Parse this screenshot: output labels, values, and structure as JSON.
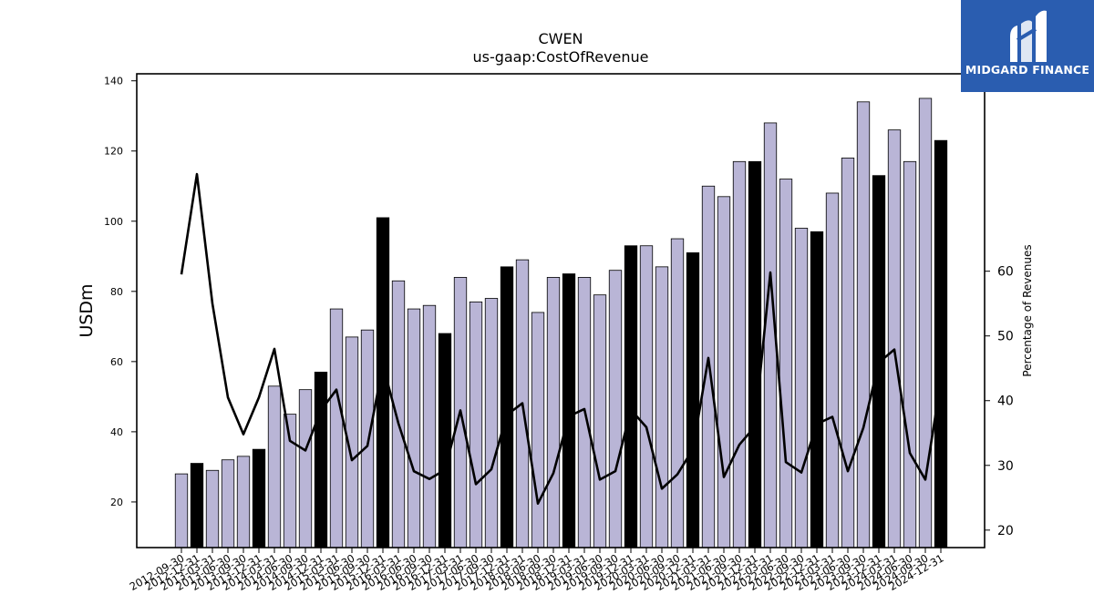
{
  "brand": {
    "name": "MIDGARD FINANCE",
    "logo_color": "#2a5db0"
  },
  "chart_data": {
    "type": "bar",
    "title": "CWEN",
    "subtitle": "us-gaap:CostOfRevenue",
    "ylabel": "USDm",
    "y2label": "Percentage of Revenues",
    "ylim": [
      7,
      142
    ],
    "y2lim": [
      17.3,
      90.5
    ],
    "yticks": [
      20,
      40,
      60,
      80,
      100,
      120,
      140
    ],
    "y2ticks": [
      20,
      30,
      40,
      50,
      60
    ],
    "categories": [
      "2012-09-30",
      "2012-12-31",
      "2013-03-31",
      "2013-06-30",
      "2013-09-30",
      "2013-12-31",
      "2014-03-31",
      "2014-06-30",
      "2014-09-30",
      "2014-12-31",
      "2015-03-31",
      "2015-06-30",
      "2015-09-30",
      "2015-12-31",
      "2016-03-31",
      "2016-06-30",
      "2016-09-30",
      "2016-12-31",
      "2017-03-31",
      "2017-06-30",
      "2017-09-30",
      "2017-12-31",
      "2018-03-31",
      "2018-06-30",
      "2018-09-30",
      "2018-12-31",
      "2019-03-31",
      "2019-06-30",
      "2019-09-30",
      "2019-12-31",
      "2020-03-31",
      "2020-06-30",
      "2020-09-30",
      "2020-12-31",
      "2021-03-31",
      "2021-06-30",
      "2021-09-30",
      "2021-12-31",
      "2022-03-31",
      "2022-06-30",
      "2022-09-30",
      "2022-12-31",
      "2023-03-31",
      "2023-06-30",
      "2023-09-30",
      "2023-12-31",
      "2024-03-31",
      "2024-06-30",
      "2024-09-30",
      "2024-12-31"
    ],
    "series": [
      {
        "kind": "bar",
        "values": [
          28,
          31,
          29,
          32,
          33,
          35,
          53,
          45,
          52,
          57,
          75,
          67,
          69,
          101,
          83,
          75,
          76,
          68,
          84,
          77,
          78,
          87,
          89,
          74,
          84,
          85,
          84,
          79,
          86,
          93,
          93,
          87,
          95,
          91,
          110,
          107,
          117,
          117,
          128,
          112,
          98,
          97,
          108,
          118,
          134,
          113,
          126,
          117,
          135,
          123
        ],
        "highlight": [
          false,
          true,
          false,
          false,
          false,
          true,
          false,
          false,
          false,
          true,
          false,
          false,
          false,
          true,
          false,
          false,
          false,
          true,
          false,
          false,
          false,
          true,
          false,
          false,
          false,
          true,
          false,
          false,
          false,
          true,
          false,
          false,
          false,
          true,
          false,
          false,
          false,
          true,
          false,
          false,
          false,
          true,
          false,
          false,
          false,
          true,
          false,
          false,
          false,
          true
        ]
      },
      {
        "kind": "line",
        "axis": "right",
        "values": [
          59.5,
          75,
          55,
          40.5,
          34.8,
          40.5,
          48,
          33.8,
          32.3,
          38.5,
          41.7,
          30.8,
          33,
          45.5,
          36.5,
          29.1,
          27.9,
          29.3,
          38.5,
          27.1,
          29.4,
          37.8,
          39.6,
          24.1,
          28.8,
          37.6,
          38.7,
          27.8,
          29.1,
          38.6,
          35.9,
          26.4,
          28.6,
          32.5,
          46.6,
          28.2,
          33.2,
          36,
          59.8,
          30.5,
          28.9,
          36.4,
          37.5,
          29.1,
          35.8,
          45.9,
          47.9,
          31.9,
          27.8,
          43
        ]
      }
    ],
    "colors": {
      "bar": "#b9b5d6",
      "bar_highlight": "#000000",
      "line": "#000000"
    },
    "grid": false,
    "legend": "none"
  }
}
